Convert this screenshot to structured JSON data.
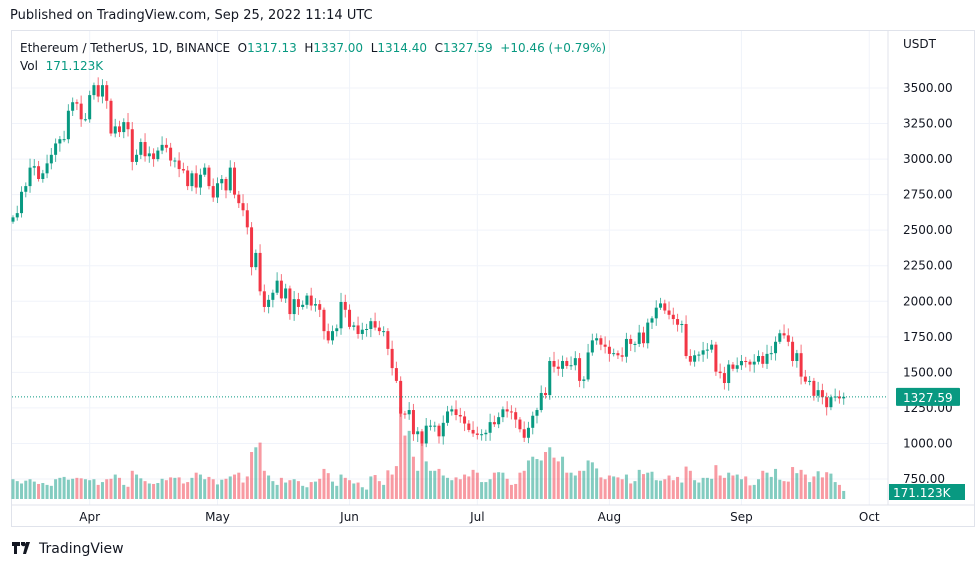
{
  "published": "Published on TradingView.com, Sep 25, 2022 11:14 UTC",
  "legend": {
    "symbol": "Ethereum / TetherUS, 1D, BINANCE",
    "open_label": "O",
    "open": "1317.13",
    "high_label": "H",
    "high": "1337.00",
    "low_label": "L",
    "low": "1314.40",
    "close_label": "C",
    "close": "1327.59",
    "change": "+10.46 (+0.79%)",
    "vol_label": "Vol",
    "vol": "171.123K"
  },
  "logo_text": "TradingView",
  "colors": {
    "up": "#089981",
    "down": "#f23645",
    "grid": "#f0f3fa"
  },
  "chart_data": {
    "type": "candlestick",
    "currency": "USDT",
    "ylim": [
      700,
      3650
    ],
    "y_ticks": [
      "750.00",
      "1000.00",
      "1250.00",
      "1500.00",
      "1750.00",
      "2000.00",
      "2250.00",
      "2500.00",
      "2750.00",
      "3000.00",
      "3250.00",
      "3500.00"
    ],
    "x_ticks": [
      "Apr",
      "May",
      "Jun",
      "Jul",
      "Aug",
      "Sep",
      "Oct"
    ],
    "x_range": [
      "2022-03-14",
      "2022-09-25"
    ],
    "last_price_label": "1327.59",
    "last_volume_label": "171.123K",
    "closes": [
      2590,
      2620,
      2770,
      2810,
      2940,
      2950,
      2860,
      2900,
      2970,
      3030,
      3110,
      3140,
      3140,
      3340,
      3400,
      3390,
      3280,
      3280,
      3450,
      3520,
      3440,
      3520,
      3410,
      3180,
      3230,
      3190,
      3260,
      3210,
      2980,
      3030,
      3120,
      3020,
      3040,
      3000,
      3060,
      3100,
      3080,
      2990,
      2990,
      2930,
      2920,
      2810,
      2900,
      2800,
      2890,
      2940,
      2810,
      2730,
      2830,
      2860,
      2780,
      2940,
      2750,
      2690,
      2640,
      2520,
      2240,
      2340,
      2070,
      1960,
      2010,
      2060,
      2145,
      2020,
      2090,
      1910,
      2015,
      1960,
      1975,
      2040,
      1970,
      1980,
      1940,
      1790,
      1725,
      1790,
      1810,
      1995,
      1940,
      1820,
      1830,
      1770,
      1800,
      1805,
      1860,
      1815,
      1790,
      1790,
      1665,
      1530,
      1440,
      1210,
      1205,
      1235,
      1065,
      1085,
      1000,
      1125,
      1125,
      1125,
      1050,
      1145,
      1225,
      1240,
      1200,
      1190,
      1140,
      1095,
      1070,
      1060,
      1065,
      1075,
      1150,
      1135,
      1185,
      1240,
      1225,
      1220,
      1168,
      1100,
      1040,
      1110,
      1195,
      1235,
      1355,
      1340,
      1580,
      1540,
      1525,
      1580,
      1545,
      1550,
      1600,
      1440,
      1450,
      1640,
      1725,
      1740,
      1695,
      1680,
      1630,
      1635,
      1620,
      1610,
      1735,
      1700,
      1700,
      1780,
      1705,
      1850,
      1880,
      1955,
      1985,
      1935,
      1905,
      1875,
      1835,
      1840,
      1615,
      1575,
      1620,
      1625,
      1655,
      1660,
      1695,
      1505,
      1495,
      1425,
      1555,
      1525,
      1550,
      1580,
      1575,
      1555,
      1575,
      1615,
      1560,
      1630,
      1635,
      1715,
      1775,
      1760,
      1715,
      1580,
      1635,
      1470,
      1435,
      1440,
      1335,
      1375,
      1325,
      1255,
      1325,
      1330,
      1317,
      1328
    ],
    "volumes_k": [
      420,
      380,
      330,
      390,
      420,
      370,
      320,
      340,
      300,
      280,
      420,
      450,
      470,
      410,
      430,
      450,
      440,
      420,
      400,
      420,
      300,
      360,
      420,
      430,
      520,
      450,
      300,
      260,
      600,
      520,
      440,
      380,
      330,
      320,
      340,
      430,
      400,
      460,
      450,
      460,
      330,
      360,
      450,
      560,
      520,
      420,
      470,
      420,
      310,
      410,
      430,
      480,
      520,
      560,
      350,
      480,
      1000,
      1100,
      1200,
      600,
      500,
      380,
      300,
      450,
      350,
      400,
      420,
      380,
      280,
      250,
      360,
      370,
      430,
      640,
      550,
      370,
      280,
      520,
      450,
      400,
      330,
      350,
      250,
      200,
      480,
      510,
      380,
      300,
      610,
      520,
      700,
      1950,
      1350,
      1450,
      900,
      600,
      1400,
      800,
      600,
      600,
      640,
      500,
      450,
      400,
      460,
      420,
      520,
      480,
      620,
      560,
      360,
      360,
      420,
      560,
      570,
      560,
      430,
      300,
      320,
      560,
      600,
      820,
      900,
      850,
      820,
      1000,
      1100,
      880,
      800,
      900,
      560,
      560,
      500,
      600,
      600,
      820,
      780,
      650,
      460,
      420,
      500,
      480,
      460,
      420,
      520,
      330,
      380,
      620,
      530,
      560,
      580,
      400,
      390,
      420,
      500,
      400,
      470,
      350,
      690,
      600,
      400,
      350,
      450,
      450,
      430,
      720,
      500,
      450,
      560,
      500,
      520,
      420,
      480,
      290,
      300,
      420,
      600,
      560,
      470,
      640,
      410,
      380,
      370,
      680,
      550,
      620,
      520,
      360,
      480,
      590,
      460,
      570,
      540,
      360,
      300,
      171
    ]
  }
}
